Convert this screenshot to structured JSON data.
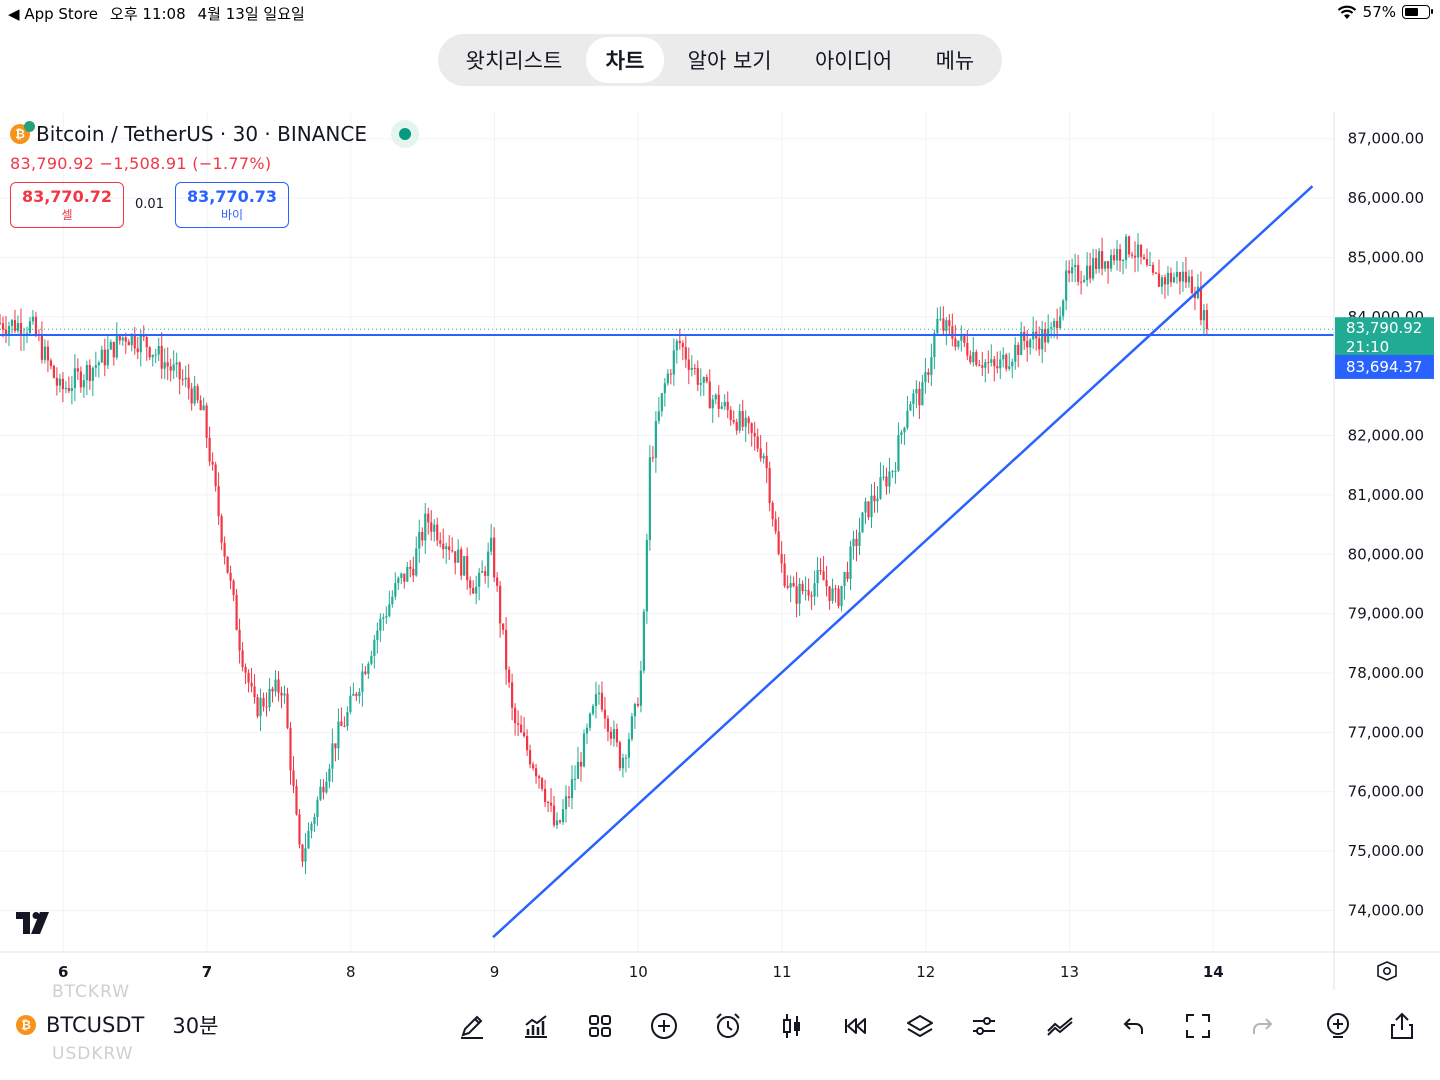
{
  "status_bar": {
    "back_app": "App Store",
    "time": "오후 11:08",
    "date": "4월 13일 일요일",
    "battery": "57%",
    "battery_level": 0.57
  },
  "nav": {
    "tabs": [
      {
        "label": "왓치리스트",
        "active": false
      },
      {
        "label": "차트",
        "active": true
      },
      {
        "label": "알아 보기",
        "active": false
      },
      {
        "label": "아이디어",
        "active": false
      },
      {
        "label": "메뉴",
        "active": false
      }
    ]
  },
  "symbol_header": {
    "title": "Bitcoin / TetherUS · 30 · BINANCE",
    "last_price": "83,790.92",
    "change": "−1,508.91",
    "change_pct": "(−1.77%)",
    "sell_price": "83,770.72",
    "sell_label": "셀",
    "spread": "0.01",
    "buy_price": "83,770.73",
    "buy_label": "바이"
  },
  "chart_data": {
    "type": "candlestick",
    "symbol": "BTCUSDT",
    "exchange": "BINANCE",
    "interval": "30",
    "x_tick_labels": [
      "6",
      "7",
      "8",
      "9",
      "10",
      "11",
      "12",
      "13",
      "14"
    ],
    "x_tick_positions_day": [
      6,
      7,
      8,
      9,
      10,
      11,
      12,
      13,
      14
    ],
    "y_tick_labels": [
      "87,000.00",
      "86,000.00",
      "85,000.00",
      "84,000.00",
      "82,000.00",
      "81,000.00",
      "80,000.00",
      "79,000.00",
      "78,000.00",
      "77,000.00",
      "76,000.00",
      "75,000.00",
      "74,000.00"
    ],
    "y_tick_values": [
      87000,
      86000,
      85000,
      84000,
      82000,
      81000,
      80000,
      79000,
      78000,
      77000,
      76000,
      75000,
      74000
    ],
    "y_range": [
      73300,
      87450
    ],
    "x_range_day": [
      5.56,
      14.84
    ],
    "price_path": [
      [
        5.56,
        83900
      ],
      [
        5.8,
        83850
      ],
      [
        6.0,
        82750
      ],
      [
        6.3,
        83300
      ],
      [
        6.45,
        83700
      ],
      [
        6.6,
        83550
      ],
      [
        6.9,
        82800
      ],
      [
        7.0,
        82300
      ],
      [
        7.1,
        80700
      ],
      [
        7.25,
        78500
      ],
      [
        7.35,
        77400
      ],
      [
        7.55,
        77800
      ],
      [
        7.67,
        74800
      ],
      [
        7.9,
        76800
      ],
      [
        8.0,
        77300
      ],
      [
        8.2,
        78700
      ],
      [
        8.35,
        79500
      ],
      [
        8.45,
        79800
      ],
      [
        8.55,
        80600
      ],
      [
        8.7,
        80200
      ],
      [
        8.9,
        79400
      ],
      [
        9.0,
        80100
      ],
      [
        9.15,
        77200
      ],
      [
        9.35,
        76200
      ],
      [
        9.45,
        75300
      ],
      [
        9.6,
        76400
      ],
      [
        9.75,
        77700
      ],
      [
        9.9,
        76500
      ],
      [
        10.0,
        77300
      ],
      [
        10.05,
        78200
      ],
      [
        10.1,
        81500
      ],
      [
        10.2,
        82800
      ],
      [
        10.3,
        83600
      ],
      [
        10.5,
        82700
      ],
      [
        10.7,
        82300
      ],
      [
        10.9,
        81700
      ],
      [
        11.0,
        79900
      ],
      [
        11.1,
        79300
      ],
      [
        11.3,
        79600
      ],
      [
        11.4,
        79200
      ],
      [
        11.6,
        80700
      ],
      [
        11.8,
        81500
      ],
      [
        11.9,
        82600
      ],
      [
        12.0,
        82700
      ],
      [
        12.1,
        83900
      ],
      [
        12.3,
        83500
      ],
      [
        12.5,
        83100
      ],
      [
        12.7,
        83600
      ],
      [
        12.9,
        83700
      ],
      [
        13.0,
        84600
      ],
      [
        13.2,
        84900
      ],
      [
        13.45,
        85200
      ],
      [
        13.6,
        84600
      ],
      [
        13.8,
        84700
      ],
      [
        13.9,
        84500
      ],
      [
        13.97,
        83790
      ]
    ],
    "horizontal_line": {
      "value": 83694.37,
      "label": "83,694.37",
      "color": "#2962ff"
    },
    "last_price": {
      "value": 83790.92,
      "label": "83,790.92",
      "countdown": "21:10",
      "color": "#22ab94"
    },
    "trend_line": {
      "from": [
        8.99,
        73550
      ],
      "to": [
        14.69,
        86200
      ],
      "color": "#2962ff"
    },
    "up_color": "#22ab94",
    "down_color": "#f23645",
    "grid": true
  },
  "bottom_bar": {
    "ghost_above": "BTCKRW",
    "ghost_below": "USDKRW",
    "ticker": "BTCUSDT",
    "coin_glyph": "₿",
    "interval": "30분",
    "tools": [
      "draw-icon",
      "indicators-icon",
      "layout-grid-icon",
      "add-icon",
      "alarm-icon",
      "candle-type-icon",
      "replay-icon",
      "layers-icon",
      "settings-sliders-icon",
      "trend-icon",
      "undo-icon",
      "fullscreen-icon",
      "redo-icon",
      "add-chart-icon",
      "share-icon"
    ]
  }
}
